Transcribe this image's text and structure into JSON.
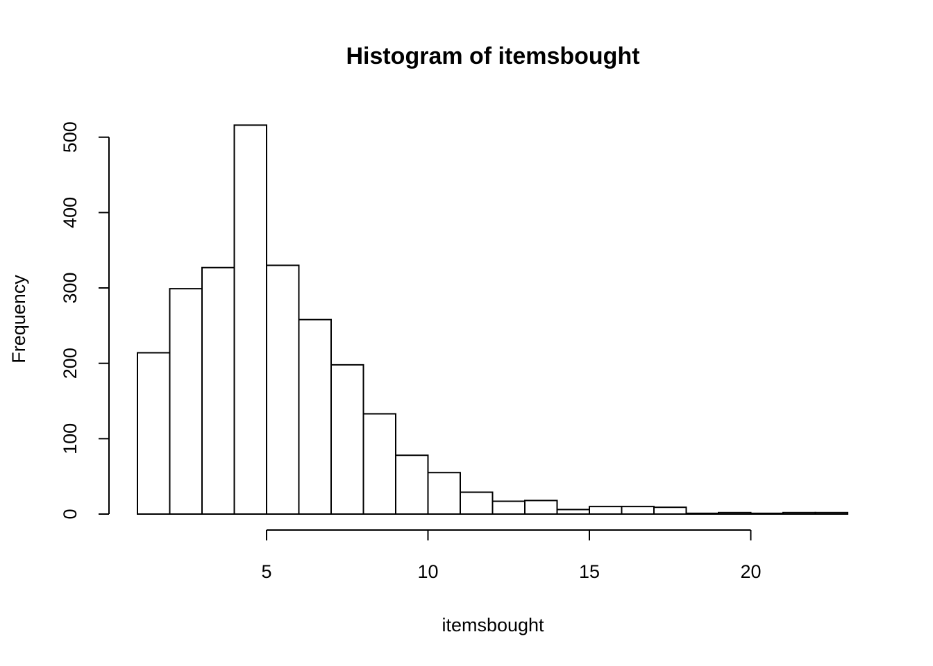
{
  "chart_data": {
    "type": "bar",
    "title": "Histogram of itemsbought",
    "xlabel": "itemsbought",
    "ylabel": "Frequency",
    "bins": [
      {
        "start": 1,
        "end": 2,
        "count": 214
      },
      {
        "start": 2,
        "end": 3,
        "count": 299
      },
      {
        "start": 3,
        "end": 4,
        "count": 327
      },
      {
        "start": 4,
        "end": 5,
        "count": 516
      },
      {
        "start": 5,
        "end": 6,
        "count": 330
      },
      {
        "start": 6,
        "end": 7,
        "count": 258
      },
      {
        "start": 7,
        "end": 8,
        "count": 198
      },
      {
        "start": 8,
        "end": 9,
        "count": 133
      },
      {
        "start": 9,
        "end": 10,
        "count": 78
      },
      {
        "start": 10,
        "end": 11,
        "count": 55
      },
      {
        "start": 11,
        "end": 12,
        "count": 29
      },
      {
        "start": 12,
        "end": 13,
        "count": 17
      },
      {
        "start": 13,
        "end": 14,
        "count": 18
      },
      {
        "start": 14,
        "end": 15,
        "count": 6
      },
      {
        "start": 15,
        "end": 16,
        "count": 10
      },
      {
        "start": 16,
        "end": 17,
        "count": 10
      },
      {
        "start": 17,
        "end": 18,
        "count": 9
      },
      {
        "start": 18,
        "end": 19,
        "count": 1
      },
      {
        "start": 19,
        "end": 20,
        "count": 2
      },
      {
        "start": 20,
        "end": 21,
        "count": 1
      },
      {
        "start": 21,
        "end": 22,
        "count": 2
      },
      {
        "start": 22,
        "end": 23,
        "count": 2
      }
    ],
    "xticks": [
      5,
      10,
      15,
      20
    ],
    "yticks": [
      0,
      100,
      200,
      300,
      400,
      500
    ],
    "xlim": [
      1,
      23
    ],
    "ylim": [
      0,
      520
    ],
    "grid": false
  }
}
